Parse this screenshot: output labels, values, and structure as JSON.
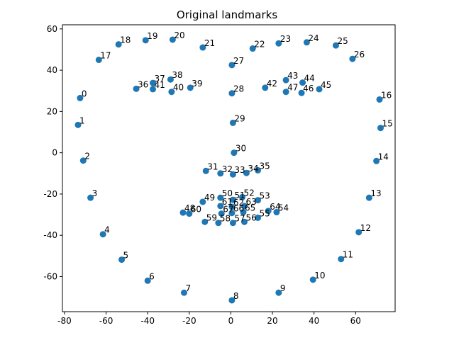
{
  "chart_data": {
    "type": "scatter",
    "title": "Original landmarks",
    "xlabel": "",
    "ylabel": "",
    "xlim": [
      -81,
      79
    ],
    "ylim": [
      -77,
      62
    ],
    "x_ticks": [
      -80,
      -60,
      -40,
      -20,
      0,
      20,
      40,
      60
    ],
    "y_ticks": [
      -60,
      -40,
      -20,
      0,
      20,
      40,
      60
    ],
    "grid": false,
    "marker_color": "#1f77b4",
    "series": [
      {
        "points": [
          {
            "label": "0",
            "x": -72.5,
            "y": 26.5
          },
          {
            "label": "1",
            "x": -73.5,
            "y": 13.5
          },
          {
            "label": "2",
            "x": -71.0,
            "y": -3.8
          },
          {
            "label": "3",
            "x": -67.5,
            "y": -21.8
          },
          {
            "label": "4",
            "x": -61.5,
            "y": -39.5
          },
          {
            "label": "5",
            "x": -52.5,
            "y": -51.8
          },
          {
            "label": "6",
            "x": -40.0,
            "y": -62.0
          },
          {
            "label": "7",
            "x": -22.5,
            "y": -67.8
          },
          {
            "label": "8",
            "x": 0.5,
            "y": -71.5
          },
          {
            "label": "9",
            "x": 23.0,
            "y": -67.8
          },
          {
            "label": "10",
            "x": 39.5,
            "y": -61.5
          },
          {
            "label": "11",
            "x": 53.0,
            "y": -51.5
          },
          {
            "label": "12",
            "x": 61.5,
            "y": -38.5
          },
          {
            "label": "13",
            "x": 66.5,
            "y": -21.8
          },
          {
            "label": "14",
            "x": 70.0,
            "y": -4.0
          },
          {
            "label": "15",
            "x": 72.0,
            "y": 12.0
          },
          {
            "label": "16",
            "x": 71.5,
            "y": 25.8
          },
          {
            "label": "17",
            "x": -63.5,
            "y": 45.0
          },
          {
            "label": "18",
            "x": -54.0,
            "y": 52.5
          },
          {
            "label": "19",
            "x": -41.0,
            "y": 54.5
          },
          {
            "label": "20",
            "x": -28.0,
            "y": 54.8
          },
          {
            "label": "21",
            "x": -13.5,
            "y": 51.0
          },
          {
            "label": "22",
            "x": 10.5,
            "y": 50.5
          },
          {
            "label": "23",
            "x": 23.0,
            "y": 53.0
          },
          {
            "label": "24",
            "x": 36.5,
            "y": 53.5
          },
          {
            "label": "25",
            "x": 50.5,
            "y": 52.0
          },
          {
            "label": "26",
            "x": 58.5,
            "y": 45.5
          },
          {
            "label": "27",
            "x": 0.5,
            "y": 42.5
          },
          {
            "label": "28",
            "x": 0.5,
            "y": 28.8
          },
          {
            "label": "29",
            "x": 1.0,
            "y": 14.5
          },
          {
            "label": "30",
            "x": 1.5,
            "y": 0.0
          },
          {
            "label": "31",
            "x": -12.0,
            "y": -8.8
          },
          {
            "label": "32",
            "x": -5.0,
            "y": -10.0
          },
          {
            "label": "33",
            "x": 1.0,
            "y": -10.5
          },
          {
            "label": "34",
            "x": 7.5,
            "y": -9.8
          },
          {
            "label": "35",
            "x": 13.0,
            "y": -8.5
          },
          {
            "label": "36",
            "x": -45.5,
            "y": 31.0
          },
          {
            "label": "37",
            "x": -37.5,
            "y": 33.8
          },
          {
            "label": "38",
            "x": -29.0,
            "y": 35.5
          },
          {
            "label": "39",
            "x": -19.5,
            "y": 31.5
          },
          {
            "label": "40",
            "x": -28.5,
            "y": 29.5
          },
          {
            "label": "41",
            "x": -37.5,
            "y": 30.8
          },
          {
            "label": "42",
            "x": 16.5,
            "y": 31.5
          },
          {
            "label": "43",
            "x": 26.5,
            "y": 35.2
          },
          {
            "label": "44",
            "x": 34.5,
            "y": 34.0
          },
          {
            "label": "45",
            "x": 42.5,
            "y": 30.8
          },
          {
            "label": "46",
            "x": 34.0,
            "y": 29.0
          },
          {
            "label": "47",
            "x": 26.5,
            "y": 29.5
          },
          {
            "label": "48",
            "x": -23.0,
            "y": -29.0
          },
          {
            "label": "49",
            "x": -13.5,
            "y": -23.8
          },
          {
            "label": "50",
            "x": -5.0,
            "y": -21.8
          },
          {
            "label": "51",
            "x": 1.0,
            "y": -22.8
          },
          {
            "label": "52",
            "x": 5.5,
            "y": -21.5
          },
          {
            "label": "53",
            "x": 13.0,
            "y": -23.0
          },
          {
            "label": "54",
            "x": 22.0,
            "y": -28.8
          },
          {
            "label": "55",
            "x": 13.0,
            "y": -31.5
          },
          {
            "label": "56",
            "x": 6.5,
            "y": -33.5
          },
          {
            "label": "57",
            "x": 1.0,
            "y": -34.0
          },
          {
            "label": "58",
            "x": -6.0,
            "y": -34.0
          },
          {
            "label": "59",
            "x": -12.5,
            "y": -33.5
          },
          {
            "label": "60",
            "x": -20.0,
            "y": -29.5
          },
          {
            "label": "61",
            "x": -5.0,
            "y": -25.8
          },
          {
            "label": "62",
            "x": 0.5,
            "y": -26.2
          },
          {
            "label": "63",
            "x": 6.5,
            "y": -25.8
          },
          {
            "label": "64",
            "x": 18.0,
            "y": -28.2
          },
          {
            "label": "65",
            "x": 6.0,
            "y": -28.8
          },
          {
            "label": "66",
            "x": 0.5,
            "y": -29.2
          },
          {
            "label": "67",
            "x": -4.5,
            "y": -29.5
          }
        ]
      }
    ]
  }
}
